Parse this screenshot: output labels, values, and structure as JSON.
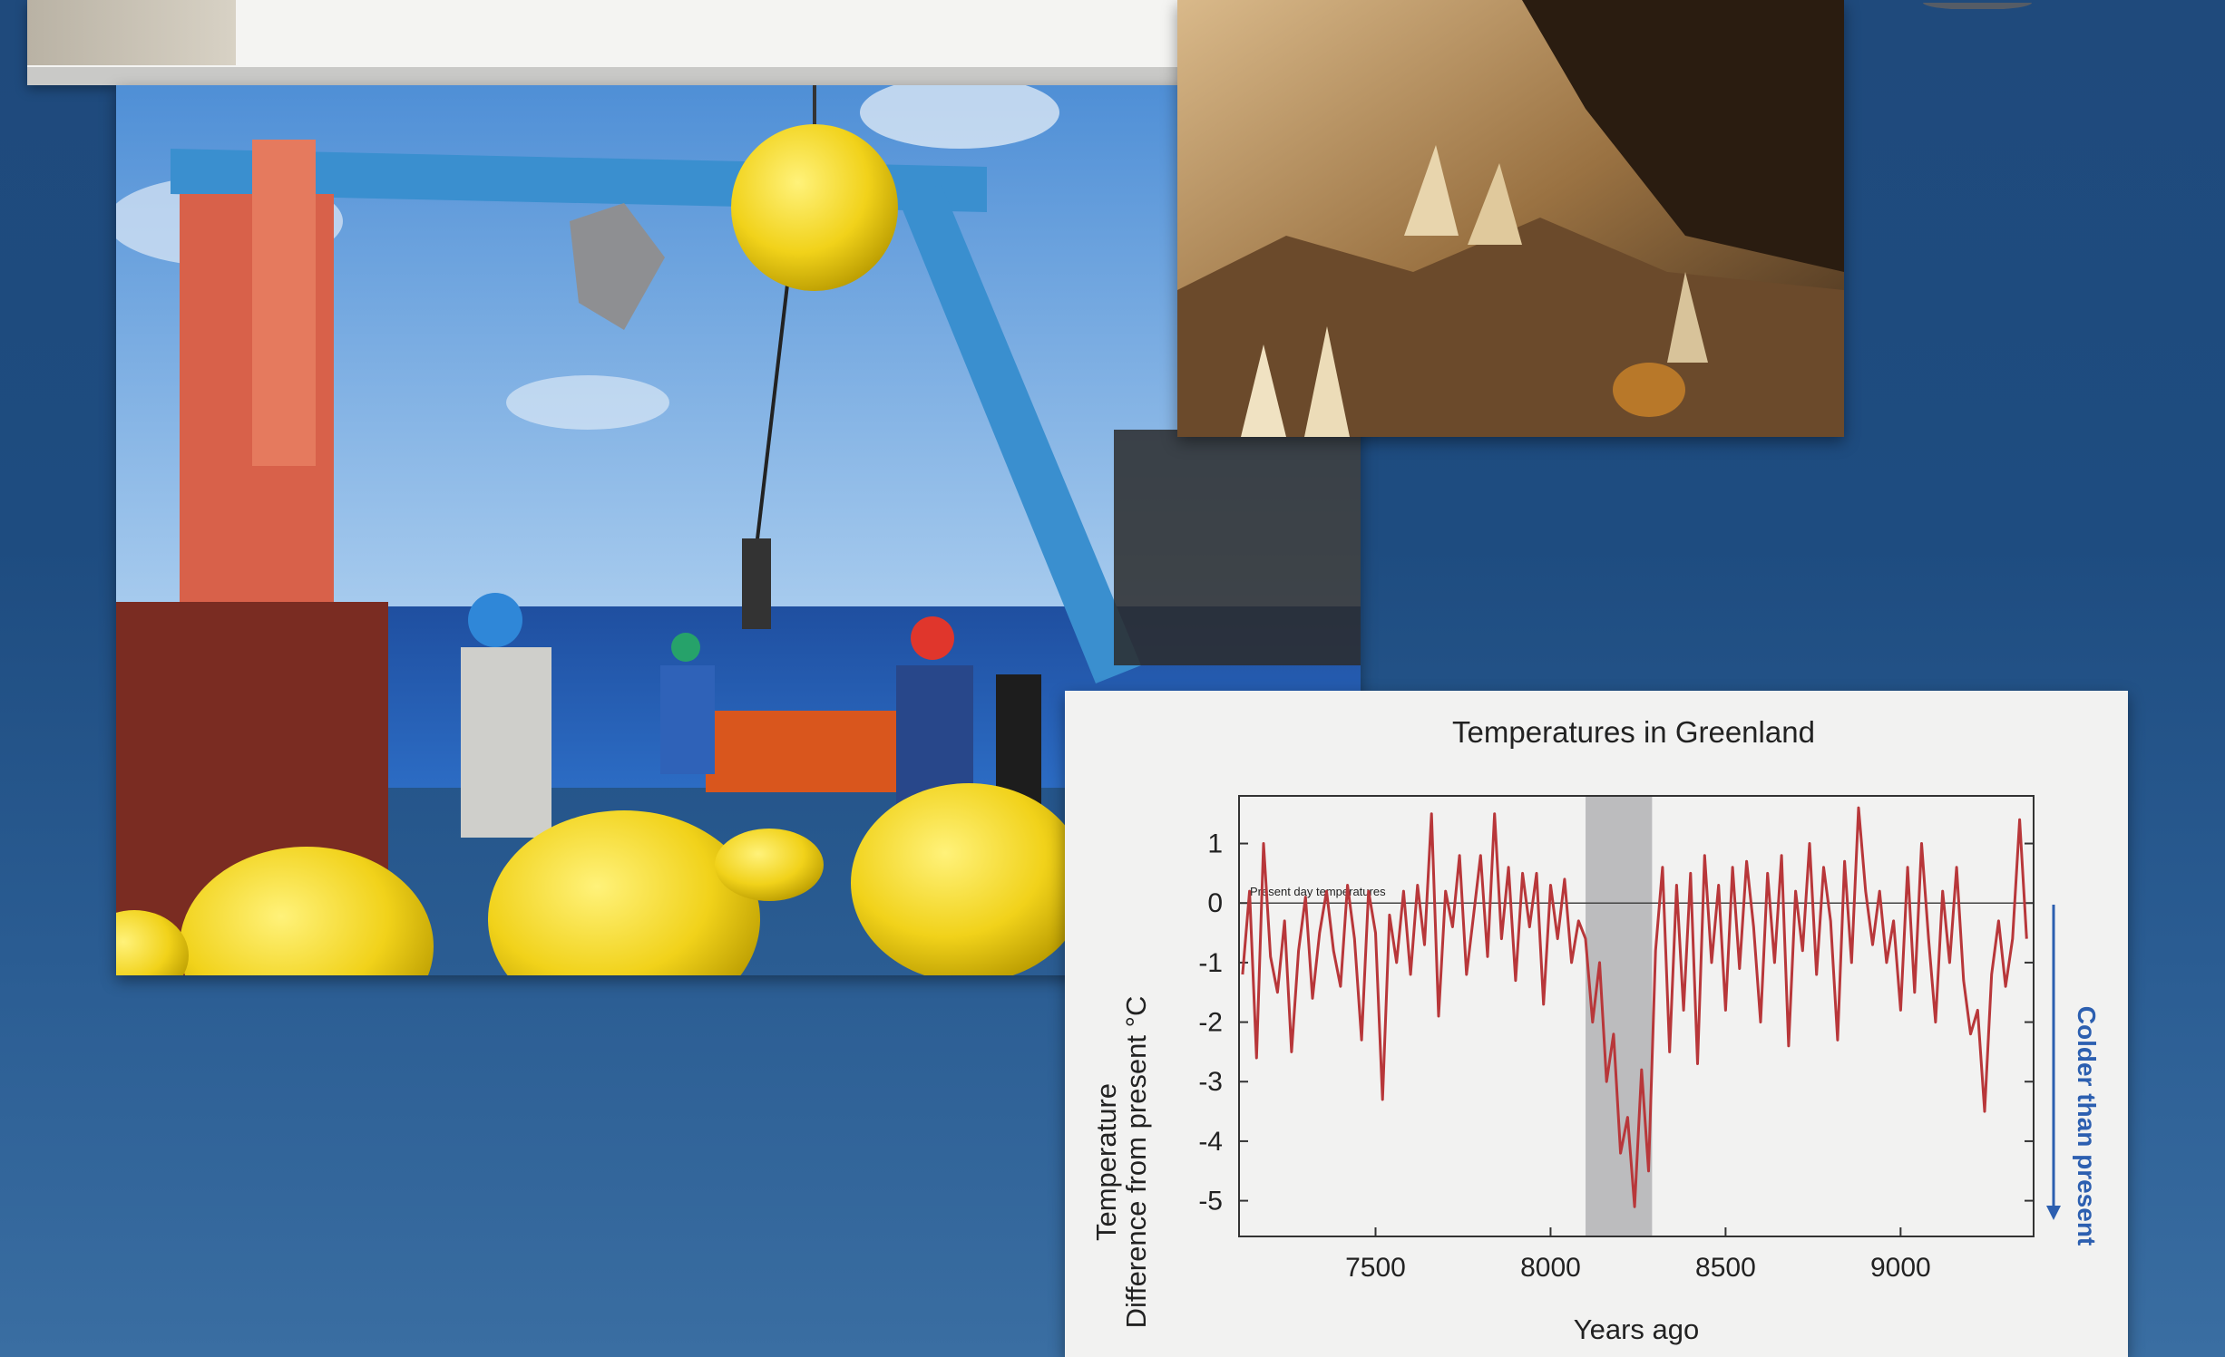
{
  "colors": {
    "background": "#1f4a7c",
    "series_line": "#b8373a",
    "shade_band": "#bcbcbe",
    "colder_arrow": "#2c5fb0",
    "bouy_yellow": "#f1d21a",
    "crane_blue": "#3a8fcf",
    "crane_orange": "#d8614a"
  },
  "images": [
    {
      "name": "research-ship-deck-photo",
      "description_icon": "photo-icon"
    },
    {
      "name": "cave-stalagmites-photo",
      "description_icon": "photo-icon"
    }
  ],
  "chart_data": {
    "type": "line",
    "title": "Temperatures in Greenland",
    "xlabel": "Years ago",
    "ylabel_line1": "Temperature",
    "ylabel_line2": "Difference from present °C",
    "xlim": [
      7110,
      9380
    ],
    "ylim": [
      -5.6,
      1.8
    ],
    "x_ticks": [
      7500,
      8000,
      8500,
      9000
    ],
    "x_tick_labels": [
      "7500",
      "8000",
      "8500",
      "9000"
    ],
    "y_ticks": [
      1,
      0,
      -1,
      -2,
      -3,
      -4,
      -5
    ],
    "y_tick_labels": [
      "1",
      "0",
      "-1",
      "-2",
      "-3",
      "-4",
      "-5"
    ],
    "reference_line": {
      "y": 0,
      "label": "Present day temperatures"
    },
    "shaded_region": [
      8100,
      8290
    ],
    "side_annotation": "Colder than present",
    "grid": false,
    "series": [
      {
        "x": [
          7120,
          7140,
          7160,
          7180,
          7200,
          7220,
          7240,
          7260,
          7280,
          7300,
          7320,
          7340,
          7360,
          7380,
          7400,
          7420,
          7440,
          7460,
          7480,
          7500,
          7520,
          7540,
          7560,
          7580,
          7600,
          7620,
          7640,
          7660,
          7680,
          7700,
          7720,
          7740,
          7760,
          7780,
          7800,
          7820,
          7840,
          7860,
          7880,
          7900,
          7920,
          7940,
          7960,
          7980,
          8000,
          8020,
          8040,
          8060,
          8080,
          8100,
          8120,
          8140,
          8160,
          8180,
          8200,
          8220,
          8240,
          8260,
          8280,
          8300,
          8320,
          8340,
          8360,
          8380,
          8400,
          8420,
          8440,
          8460,
          8480,
          8500,
          8520,
          8540,
          8560,
          8580,
          8600,
          8620,
          8640,
          8660,
          8680,
          8700,
          8720,
          8740,
          8760,
          8780,
          8800,
          8820,
          8840,
          8860,
          8880,
          8900,
          8920,
          8940,
          8960,
          8980,
          9000,
          9020,
          9040,
          9060,
          9080,
          9100,
          9120,
          9140,
          9160,
          9180,
          9200,
          9220,
          9240,
          9260,
          9280,
          9300,
          9320,
          9340,
          9360
        ],
        "y": [
          -1.2,
          0.2,
          -2.6,
          1.0,
          -0.9,
          -1.5,
          -0.3,
          -2.5,
          -0.8,
          0.1,
          -1.6,
          -0.5,
          0.2,
          -0.8,
          -1.4,
          0.3,
          -0.6,
          -2.3,
          0.2,
          -0.5,
          -3.3,
          -0.2,
          -1.0,
          0.2,
          -1.2,
          0.3,
          -0.7,
          1.5,
          -1.9,
          0.2,
          -0.4,
          0.8,
          -1.2,
          -0.2,
          0.8,
          -0.9,
          1.5,
          -0.6,
          0.6,
          -1.3,
          0.5,
          -0.4,
          0.5,
          -1.7,
          0.3,
          -0.6,
          0.4,
          -1.0,
          -0.3,
          -0.6,
          -2.0,
          -1.0,
          -3.0,
          -2.2,
          -4.2,
          -3.6,
          -5.1,
          -2.8,
          -4.5,
          -0.8,
          0.6,
          -2.5,
          0.3,
          -1.8,
          0.5,
          -2.7,
          0.8,
          -1.0,
          0.3,
          -1.8,
          0.6,
          -1.1,
          0.7,
          -0.4,
          -2.0,
          0.5,
          -1.0,
          0.8,
          -2.4,
          0.2,
          -0.8,
          1.0,
          -1.2,
          0.6,
          -0.3,
          -2.3,
          0.7,
          -1.0,
          1.6,
          0.2,
          -0.7,
          0.2,
          -1.0,
          -0.3,
          -1.8,
          0.6,
          -1.5,
          1.0,
          -0.6,
          -2.0,
          0.2,
          -1.0,
          0.6,
          -1.3,
          -2.2,
          -1.8,
          -3.5,
          -1.2,
          -0.3,
          -1.4,
          -0.6,
          1.4,
          -0.6
        ]
      }
    ]
  }
}
